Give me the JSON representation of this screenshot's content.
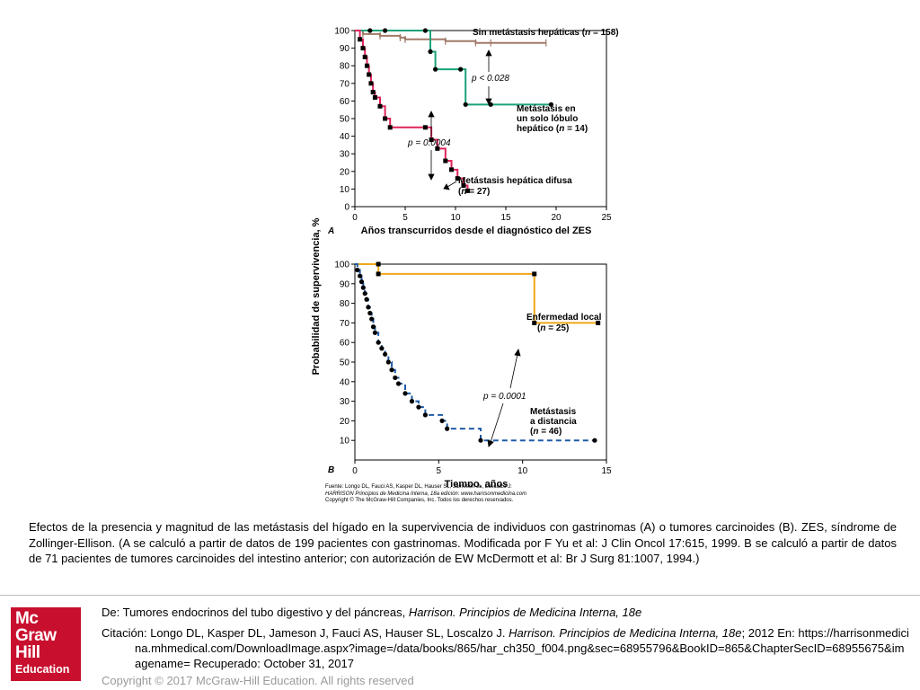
{
  "chart_data": [
    {
      "type": "line",
      "panel_label": "A",
      "xlabel": "Años transcurridos desde el diagnóstico del ZES",
      "ylabel": "Probabilidad de supervivencia, %",
      "xlim": [
        0,
        25
      ],
      "ylim": [
        0,
        100
      ],
      "xticks": [
        0,
        5,
        10,
        15,
        20,
        25
      ],
      "yticks": [
        0,
        10,
        20,
        30,
        40,
        50,
        60,
        70,
        80,
        90,
        100
      ],
      "series": [
        {
          "name": "Sin metástasis hepáticas (n = 158)",
          "color": "#a07a68",
          "x": [
            0,
            0.8,
            2.5,
            4.5,
            5.0,
            9.0,
            12.0,
            13.5,
            19.0
          ],
          "y": [
            100,
            98,
            97,
            96,
            95,
            94,
            93,
            93,
            93
          ]
        },
        {
          "name": "Metástasis en un solo lóbulo hepático (n = 14)",
          "color": "#1aa37a",
          "x": [
            0,
            1.5,
            3.0,
            7.0,
            7.5,
            8.0,
            10.5,
            11.0,
            13.5,
            19.5
          ],
          "y": [
            100,
            100,
            100,
            100,
            88,
            78,
            78,
            58,
            58,
            58
          ]
        },
        {
          "name": "Metástasis hepática difusa (n = 27)",
          "color": "#e0245a",
          "x": [
            0,
            0.5,
            0.8,
            1.0,
            1.2,
            1.4,
            1.6,
            1.8,
            2.0,
            2.5,
            3.0,
            3.5,
            7.0,
            7.6,
            8.2,
            9.0,
            9.6,
            10.2,
            10.8,
            11.2
          ],
          "y": [
            100,
            95,
            90,
            85,
            80,
            75,
            70,
            65,
            62,
            57,
            50,
            45,
            45,
            38,
            33,
            26,
            21,
            16,
            12,
            9
          ]
        }
      ],
      "annotations": [
        {
          "label": "p < 0.028"
        },
        {
          "label": "p = 0.0004"
        }
      ]
    },
    {
      "type": "line",
      "panel_label": "B",
      "xlabel": "Tiempo, años",
      "ylabel": "Probabilidad de supervivencia, %",
      "xlim": [
        0,
        15
      ],
      "ylim": [
        0,
        100
      ],
      "xticks": [
        0,
        5,
        10,
        15
      ],
      "yticks": [
        10,
        20,
        30,
        40,
        50,
        60,
        70,
        80,
        90,
        100
      ],
      "series": [
        {
          "name": "Enfermedad local (n = 25)",
          "color": "#f0a818",
          "x": [
            0,
            1.4,
            1.4,
            10.7,
            10.7,
            14.5
          ],
          "y": [
            100,
            100,
            95,
            95,
            70,
            70
          ]
        },
        {
          "name": "Metástasis a distancia (n = 46)",
          "color": "#1e5aa8",
          "x": [
            0,
            0.15,
            0.3,
            0.4,
            0.5,
            0.6,
            0.7,
            0.8,
            0.9,
            1.0,
            1.1,
            1.2,
            1.4,
            1.6,
            1.8,
            2.0,
            2.2,
            2.4,
            2.6,
            3.0,
            3.4,
            3.8,
            4.2,
            5.2,
            5.5,
            7.5,
            14.3
          ],
          "y": [
            100,
            97,
            94,
            91,
            88,
            85,
            82,
            78,
            75,
            72,
            68,
            65,
            60,
            57,
            54,
            50,
            46,
            42,
            39,
            34,
            30,
            27,
            23,
            20,
            16,
            10,
            10
          ]
        }
      ],
      "annotations": [
        {
          "label": "p = 0.0001"
        }
      ]
    }
  ],
  "figure": {
    "panel_a": "A",
    "panel_b": "B",
    "labels_a": {
      "none_1": "Sin metástasis hepáticas (",
      "none_n": "n",
      "none_2": " = 158)",
      "single_l1": "Metástasis en",
      "single_l2": "un solo lóbulo",
      "single_l3a": "hepático (",
      "single_n": "n",
      "single_l3b": " = 14)",
      "diffuse_l1": "Metástasis hepática difusa",
      "diffuse_l2a": "(",
      "diffuse_n": "n",
      "diffuse_l2b": " = 27)",
      "p1": "p < 0.028",
      "p2": "p = 0.0004"
    },
    "labels_b": {
      "local_l1": "Enfermedad local",
      "local_l2a": "(",
      "local_n": "n",
      "local_l2b": " = 25)",
      "dist_l1": "Metástasis",
      "dist_l2": "a distancia",
      "dist_l3a": "(",
      "dist_n": "n",
      "dist_l3b": " = 46)",
      "p3": "p = 0.0001"
    },
    "source_lines": [
      "Fuente: Longo DL, Fauci AS, Kasper DL, Hauser SL, Jameson JL, Loscalzo J:",
      "HARRISON Principios de Medicina Interna, 18a edición: www.harrisonmedicina.com",
      "Copyright © The McGraw-Hill Companies, Inc. Todos los derechos reservados."
    ]
  },
  "caption": "Efectos de la presencia y magnitud de las metástasis del hígado en la supervivencia de individuos con gastrinomas (A) o tumores carcinoides (B). ZES, síndrome de Zollinger-Ellison. (A se calculó a partir de datos de 199 pacientes con gastrinomas. Modificada por F Yu et al: J Clin Oncol 17:615, 1999. B se calculó a partir de datos de 71 pacientes de tumores carcinoides del intestino anterior; con autorización de EW McDermott et al: Br J Surg 81:1007, 1994.)",
  "logo": {
    "l1": "Mc",
    "l2": "Graw",
    "l3": "Hill",
    "l4": "Education",
    "color": "#c8102e"
  },
  "footer": {
    "de_prefix": "De: Tumores endocrinos del tubo digestivo y del páncreas, ",
    "de_book": "Harrison. Principios de Medicina Interna, 18e",
    "cit_prefix": "Citación: Longo DL, Kasper DL, Jameson J, Fauci AS, Hauser SL, Loscalzo J. ",
    "cit_book": "Harrison. Principios de Medicina Interna, 18e",
    "cit_rest": "; 2012 En: https://harrisonmedicina.mhmedical.com/DownloadImage.aspx?image=/data/books/865/har_ch350_f004.png&sec=68955796&BookID=865&ChapterSecID=68955675&imagename= Recuperado: October 31, 2017",
    "copyright": "Copyright © 2017 McGraw-Hill Education. All rights reserved"
  }
}
